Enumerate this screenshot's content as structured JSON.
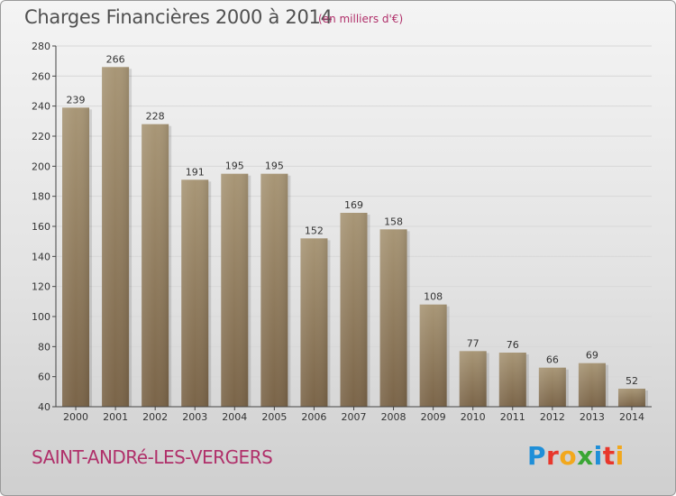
{
  "header": {
    "title": "Charges Financières 2000 à 2014",
    "subtitle": "(en milliers d'€)"
  },
  "footer": {
    "town": "SAINT-ANDRé-LES-VERGERS",
    "brand_letters": [
      "P",
      "r",
      "o",
      "x",
      "i",
      "t",
      "i"
    ],
    "brand_colors": [
      "#1f8fd8",
      "#e8372c",
      "#f2a81d",
      "#3aa635",
      "#1f8fd8",
      "#e8372c",
      "#f2a81d"
    ]
  },
  "colors": {
    "bar_top": "#a89676",
    "bar_bottom": "#7a6448",
    "axis": "#444444",
    "grid": "#d8d8d8",
    "accent": "#b0306a"
  },
  "chart_data": {
    "type": "bar",
    "categories": [
      "2000",
      "2001",
      "2002",
      "2003",
      "2004",
      "2005",
      "2006",
      "2007",
      "2008",
      "2009",
      "2010",
      "2011",
      "2012",
      "2013",
      "2014"
    ],
    "values": [
      239,
      266,
      228,
      191,
      195,
      195,
      152,
      169,
      158,
      108,
      77,
      76,
      66,
      69,
      52
    ],
    "ylim": [
      40,
      280
    ],
    "yticks": [
      40,
      60,
      80,
      100,
      120,
      140,
      160,
      180,
      200,
      220,
      240,
      260,
      280
    ],
    "grid": true,
    "legend": "none"
  }
}
